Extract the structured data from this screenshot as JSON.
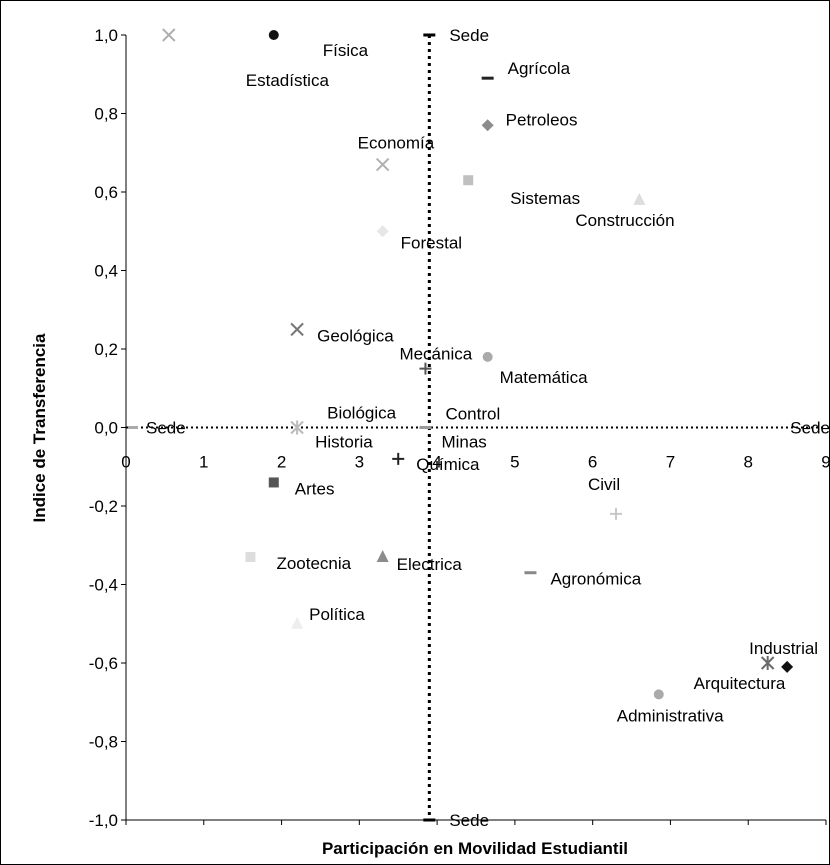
{
  "chart_data": {
    "type": "scatter",
    "title": "",
    "xlabel": "Participación en Movilidad Estudiantil",
    "ylabel": "Indice de Transferencia",
    "xlim": [
      0,
      9
    ],
    "ylim": [
      -1.0,
      1.0
    ],
    "x_ticks": [
      "0",
      "1",
      "2",
      "3",
      "4",
      "5",
      "6",
      "7",
      "8",
      "9"
    ],
    "y_ticks": [
      "1,0",
      "0,8",
      "0,6",
      "0,4",
      "0,2",
      "0,0",
      "-0,2",
      "-0,4",
      "-0,6",
      "-0,8",
      "-1,0"
    ],
    "grid": false,
    "reference_lines": [
      {
        "orientation": "vertical",
        "x": 3.9,
        "style": "dotted",
        "labels": [
          "Sede",
          "Sede"
        ]
      },
      {
        "orientation": "horizontal",
        "y": 0.0,
        "style": "dotted",
        "labels": [
          "Sede",
          "Sede"
        ]
      }
    ],
    "points": [
      {
        "label": "Estadística",
        "x": 0.55,
        "y": 1.0,
        "marker": "x",
        "color": "#b0b0b0"
      },
      {
        "label": "Física",
        "x": 1.9,
        "y": 1.0,
        "marker": "circle",
        "color": "#111111"
      },
      {
        "label": "Agrícola",
        "x": 4.65,
        "y": 0.89,
        "marker": "dash",
        "color": "#222222"
      },
      {
        "label": "Petroleos",
        "x": 4.65,
        "y": 0.77,
        "marker": "diamond",
        "color": "#8c8c8c"
      },
      {
        "label": "Economía",
        "x": 3.3,
        "y": 0.67,
        "marker": "x",
        "color": "#b0b0b0"
      },
      {
        "label": "Sistemas",
        "x": 4.4,
        "y": 0.63,
        "marker": "square",
        "color": "#c0c0c0"
      },
      {
        "label": "Construcción",
        "x": 6.6,
        "y": 0.58,
        "marker": "triangle",
        "color": "#dddddd"
      },
      {
        "label": "Forestal",
        "x": 3.3,
        "y": 0.5,
        "marker": "diamond",
        "color": "#e6e6e6"
      },
      {
        "label": "Geológica",
        "x": 2.2,
        "y": 0.25,
        "marker": "x",
        "color": "#777777"
      },
      {
        "label": "Matemática",
        "x": 4.65,
        "y": 0.18,
        "marker": "circle",
        "color": "#aaaaaa"
      },
      {
        "label": "Mecánica",
        "x": 3.85,
        "y": 0.15,
        "marker": "plus",
        "color": "#555555"
      },
      {
        "label": "Control",
        "x": 3.85,
        "y": 0.15,
        "marker": "none",
        "color": "#555555"
      },
      {
        "label": "Biológica",
        "x": 2.2,
        "y": 0.0,
        "marker": "asterisk",
        "color": "#bbbbbb"
      },
      {
        "label": "Historia",
        "x": 2.2,
        "y": 0.0,
        "marker": "none",
        "color": "#bbbbbb"
      },
      {
        "label": "Minas",
        "x": 3.85,
        "y": 0.0,
        "marker": "dash",
        "color": "#9a9a9a"
      },
      {
        "label": "Química",
        "x": 3.5,
        "y": -0.08,
        "marker": "plus",
        "color": "#222222"
      },
      {
        "label": "Artes",
        "x": 1.9,
        "y": -0.14,
        "marker": "square",
        "color": "#555555"
      },
      {
        "label": "Civil",
        "x": 6.3,
        "y": -0.22,
        "marker": "plus",
        "color": "#c8c8c8"
      },
      {
        "label": "Zootecnia",
        "x": 1.6,
        "y": -0.33,
        "marker": "square",
        "color": "#dddddd"
      },
      {
        "label": "Electrica",
        "x": 3.3,
        "y": -0.33,
        "marker": "triangle",
        "color": "#8c8c8c"
      },
      {
        "label": "Agronómica",
        "x": 5.2,
        "y": -0.37,
        "marker": "dash",
        "color": "#888888"
      },
      {
        "label": "Política",
        "x": 2.2,
        "y": -0.5,
        "marker": "triangle",
        "color": "#eeeeee"
      },
      {
        "label": "Industrial",
        "x": 8.5,
        "y": -0.61,
        "marker": "diamond",
        "color": "#111111"
      },
      {
        "label": "Arquitectura",
        "x": 8.25,
        "y": -0.6,
        "marker": "asterisk",
        "color": "#6a6a6a"
      },
      {
        "label": "Administrativa",
        "x": 6.85,
        "y": -0.68,
        "marker": "circle",
        "color": "#aaaaaa"
      }
    ]
  }
}
